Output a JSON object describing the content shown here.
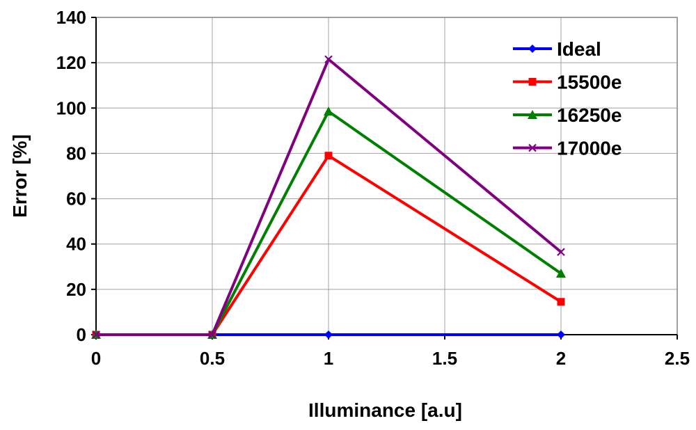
{
  "chart_data": {
    "type": "line",
    "xlabel": "Illuminance [a.u]",
    "ylabel": "Error [%]",
    "xlim": [
      0,
      2.5
    ],
    "ylim": [
      0,
      140
    ],
    "xticks": [
      0,
      0.5,
      1,
      1.5,
      2,
      2.5
    ],
    "yticks": [
      0,
      20,
      40,
      60,
      80,
      100,
      120,
      140
    ],
    "xtick_labels": [
      "0",
      "0.5",
      "1",
      "1.5",
      "2",
      "2.5"
    ],
    "ytick_labels": [
      "0",
      "20",
      "40",
      "60",
      "80",
      "100",
      "120",
      "140"
    ],
    "grid": true,
    "legend_position": "top-right",
    "series": [
      {
        "name": "Ideal",
        "color": "#0000ff",
        "marker": "diamond",
        "x": [
          0,
          0.5,
          1,
          2
        ],
        "y": [
          0,
          0,
          0,
          0
        ]
      },
      {
        "name": "15500e",
        "color": "#ff0000",
        "marker": "square",
        "x": [
          0,
          0.5,
          1,
          2
        ],
        "y": [
          0,
          0,
          79,
          14.5
        ]
      },
      {
        "name": "16250e",
        "color": "#008000",
        "marker": "triangle",
        "x": [
          0,
          0.5,
          1,
          2
        ],
        "y": [
          0,
          0,
          98.5,
          27
        ]
      },
      {
        "name": "17000e",
        "color": "#800080",
        "marker": "x",
        "x": [
          0,
          0.5,
          1,
          2
        ],
        "y": [
          0,
          0,
          121.5,
          36.5
        ]
      }
    ]
  }
}
